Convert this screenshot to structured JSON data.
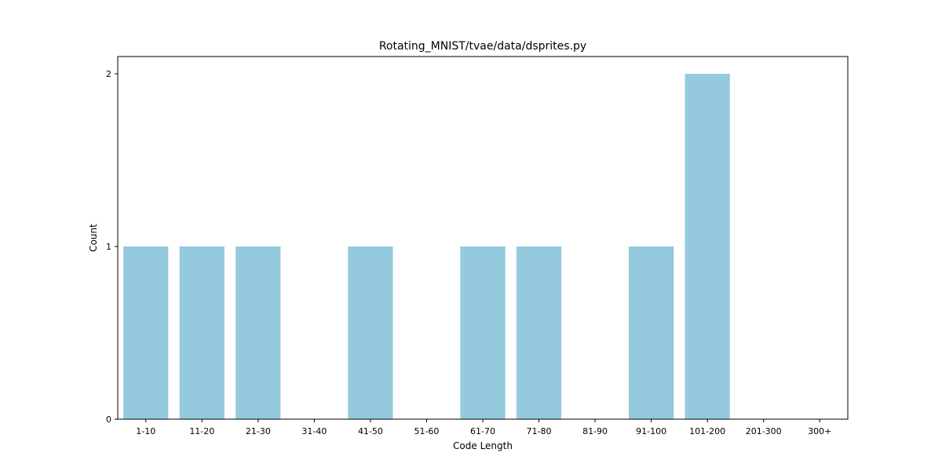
{
  "chart_data": {
    "type": "bar",
    "title": "Rotating_MNIST/tvae/data/dsprites.py",
    "xlabel": "Code Length",
    "ylabel": "Count",
    "categories": [
      "1-10",
      "11-20",
      "21-30",
      "31-40",
      "41-50",
      "51-60",
      "61-70",
      "71-80",
      "81-90",
      "91-100",
      "101-200",
      "201-300",
      "300+"
    ],
    "values": [
      1,
      1,
      1,
      0,
      1,
      0,
      1,
      1,
      0,
      1,
      2,
      0,
      0
    ],
    "ylim": [
      0,
      2.1
    ],
    "yticks": [
      0,
      1,
      2
    ],
    "bar_color": "#95c9de",
    "grid": false,
    "legend": "none"
  }
}
